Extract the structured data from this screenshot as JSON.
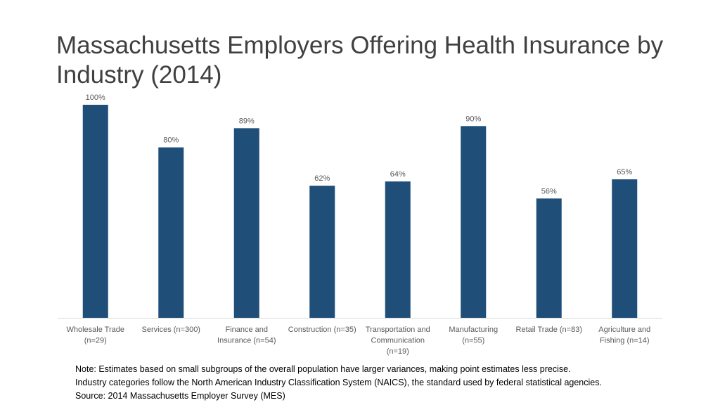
{
  "title": "Massachusetts Employers Offering Health Insurance by Industry (2014)",
  "colors": {
    "bar": "#1f4e79",
    "axis": "#d9d9d9",
    "label": "#595959"
  },
  "chart_data": {
    "type": "bar",
    "title": "Massachusetts Employers Offering Health Insurance by Industry (2014)",
    "xlabel": "",
    "ylabel": "",
    "ylim": [
      0,
      100
    ],
    "grid": false,
    "legend": "none",
    "categories": [
      [
        "Wholesale Trade",
        "(n=29)"
      ],
      [
        "Services (n=300)"
      ],
      [
        "Finance and",
        "Insurance (n=54)"
      ],
      [
        "Construction (n=35)"
      ],
      [
        "Transportation and",
        "Communication",
        "(n=19)"
      ],
      [
        "Manufacturing",
        "(n=55)"
      ],
      [
        "Retail Trade (n=83)"
      ],
      [
        "Agriculture and",
        "Fishing (n=14)"
      ]
    ],
    "values": [
      100,
      80,
      89,
      62,
      64,
      90,
      56,
      65
    ],
    "data_labels": [
      "100%",
      "80%",
      "89%",
      "62%",
      "64%",
      "90%",
      "56%",
      "65%"
    ]
  },
  "notes": [
    "Note: Estimates based on small subgroups of the overall population have larger variances, making point estimates less precise.",
    "Industry categories follow the North American Industry Classification System (NAICS), the standard used by federal statistical agencies.",
    "Source: 2014 Massachusetts Employer Survey (MES)"
  ]
}
